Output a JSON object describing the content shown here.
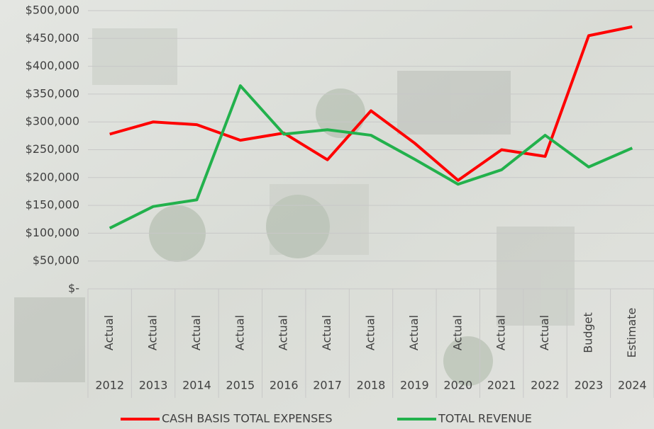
{
  "chart_data": {
    "type": "line",
    "categories": [
      "2012",
      "2013",
      "2014",
      "2015",
      "2016",
      "2017",
      "2018",
      "2019",
      "2020",
      "2021",
      "2022",
      "2023",
      "2024"
    ],
    "category_types": [
      "Actual",
      "Actual",
      "Actual",
      "Actual",
      "Actual",
      "Actual",
      "Actual",
      "Actual",
      "Actual",
      "Actual",
      "Actual",
      "Budget",
      "Estimate"
    ],
    "series": [
      {
        "name": "CASH BASIS TOTAL EXPENSES",
        "color": "#ff0000",
        "values": [
          278000,
          300000,
          295000,
          267000,
          280000,
          232000,
          320000,
          262000,
          195000,
          250000,
          238000,
          455000,
          471000
        ]
      },
      {
        "name": "TOTAL REVENUE",
        "color": "#22b14c",
        "values": [
          109000,
          148000,
          160000,
          365000,
          278000,
          286000,
          276000,
          233000,
          188000,
          214000,
          276000,
          219000,
          253000
        ]
      }
    ],
    "ylim": [
      0,
      500000
    ],
    "yticks": [
      {
        "value": 0,
        "label": "$-"
      },
      {
        "value": 50000,
        "label": "$50,000"
      },
      {
        "value": 100000,
        "label": "$100,000"
      },
      {
        "value": 150000,
        "label": "$150,000"
      },
      {
        "value": 200000,
        "label": "$200,000"
      },
      {
        "value": 250000,
        "label": "$250,000"
      },
      {
        "value": 300000,
        "label": "$300,000"
      },
      {
        "value": 350000,
        "label": "$350,000"
      },
      {
        "value": 400000,
        "label": "$400,000"
      },
      {
        "value": 450000,
        "label": "$450,000"
      },
      {
        "value": 500000,
        "label": "$500,000"
      }
    ],
    "grid": true,
    "legend": "bottom"
  }
}
